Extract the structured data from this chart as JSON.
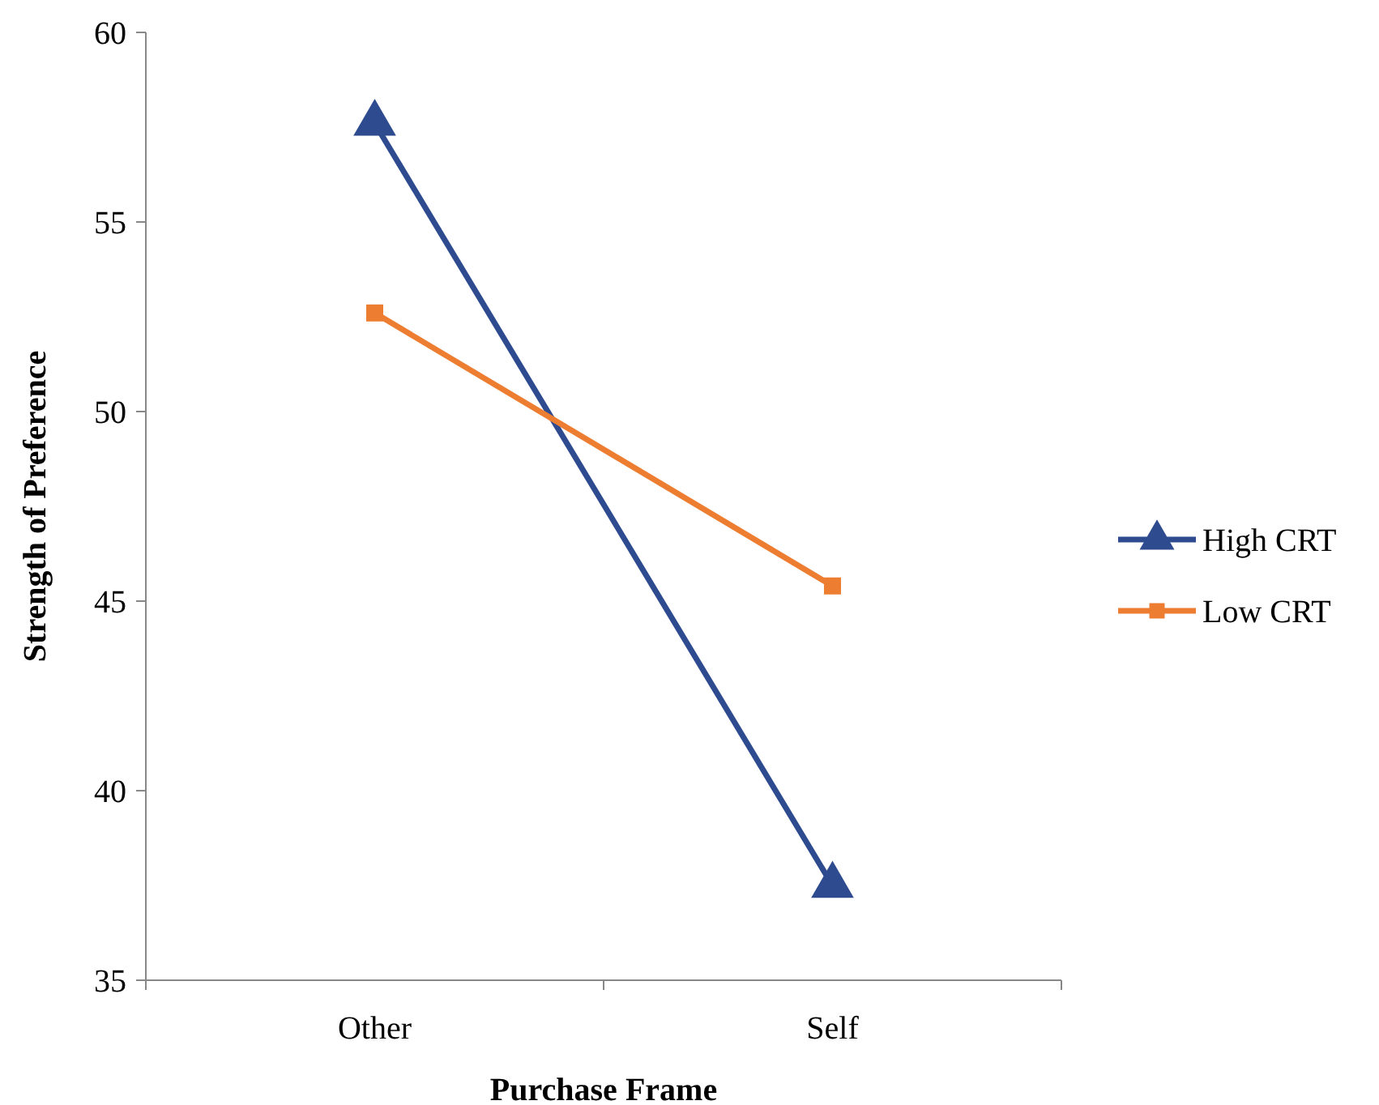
{
  "chart_data": {
    "type": "line",
    "xlabel": "Purchase Frame",
    "ylabel": "Strength of Preference",
    "categories": [
      "Other",
      "Self"
    ],
    "series": [
      {
        "name": "High CRT",
        "color": "#2e4b8f",
        "values": [
          57.6,
          37.5
        ],
        "marker": "triangle"
      },
      {
        "name": "Low CRT",
        "color": "#ed7d31",
        "values": [
          52.6,
          45.4
        ],
        "marker": "square"
      }
    ],
    "ylim": [
      35,
      60
    ],
    "yticks": [
      35,
      40,
      45,
      50,
      55,
      60
    ],
    "grid": false,
    "legend": "right",
    "line_style": "solid"
  }
}
